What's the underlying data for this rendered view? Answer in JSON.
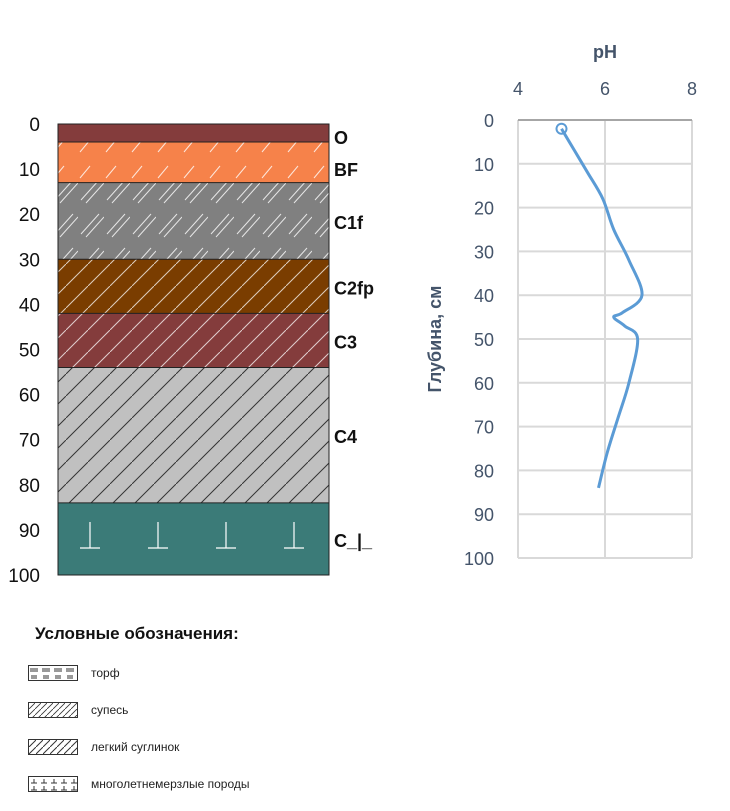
{
  "chart_data": [
    {
      "type": "soil-profile",
      "axis": {
        "min": 0,
        "max": 100,
        "ticks": [
          0,
          10,
          20,
          30,
          40,
          50,
          60,
          70,
          80,
          90,
          100
        ]
      },
      "horizons": [
        {
          "label": "O",
          "top": 0,
          "bottom": 4,
          "color": "#843c3c",
          "pattern": "none"
        },
        {
          "label": "BF",
          "top": 4,
          "bottom": 13,
          "color": "#f6824a",
          "pattern": "dense-hatch"
        },
        {
          "label": "C1f",
          "top": 13,
          "bottom": 30,
          "color": "#808080",
          "pattern": "sparse-hatch"
        },
        {
          "label": "C2fp",
          "top": 30,
          "bottom": 42,
          "color": "#7a3d00",
          "pattern": "dense-hatch"
        },
        {
          "label": "C3",
          "top": 42,
          "bottom": 54,
          "color": "#843c3c",
          "pattern": "dense-hatch"
        },
        {
          "label": "C4",
          "top": 54,
          "bottom": 84,
          "color": "#c0c0c0",
          "pattern": "dense-hatch-dark"
        },
        {
          "label": "C_|_",
          "top": 84,
          "bottom": 100,
          "color": "#3b7b78",
          "pattern": "permafrost"
        }
      ]
    },
    {
      "type": "line",
      "title": "pH",
      "ylabel": "Глубина, см",
      "xlim": [
        4,
        8
      ],
      "x_ticks": [
        4,
        6,
        8
      ],
      "ylim": [
        0,
        100
      ],
      "y_ticks": [
        0,
        10,
        20,
        30,
        40,
        50,
        60,
        70,
        80,
        90,
        100
      ],
      "y_inverted": true,
      "grid": true,
      "series": [
        {
          "color": "#5b9bd5",
          "points": [
            {
              "x": 5.0,
              "y": 2
            },
            {
              "x": 5.3,
              "y": 7
            },
            {
              "x": 5.6,
              "y": 12
            },
            {
              "x": 5.95,
              "y": 18
            },
            {
              "x": 6.2,
              "y": 25
            },
            {
              "x": 6.55,
              "y": 32
            },
            {
              "x": 6.85,
              "y": 40
            },
            {
              "x": 6.4,
              "y": 44
            },
            {
              "x": 6.2,
              "y": 45
            },
            {
              "x": 6.45,
              "y": 47
            },
            {
              "x": 6.75,
              "y": 50
            },
            {
              "x": 6.55,
              "y": 60
            },
            {
              "x": 6.3,
              "y": 68
            },
            {
              "x": 6.05,
              "y": 76
            },
            {
              "x": 5.85,
              "y": 84
            }
          ]
        }
      ]
    }
  ],
  "legend": {
    "title": "Условные обозначения:",
    "items": [
      {
        "label": "торф",
        "pattern": "peat"
      },
      {
        "label": "супесь",
        "pattern": "sandy-loam"
      },
      {
        "label": "легкий суглинок",
        "pattern": "light-loam"
      },
      {
        "label": "многолетнемерзлые породы",
        "pattern": "permafrost"
      }
    ]
  }
}
